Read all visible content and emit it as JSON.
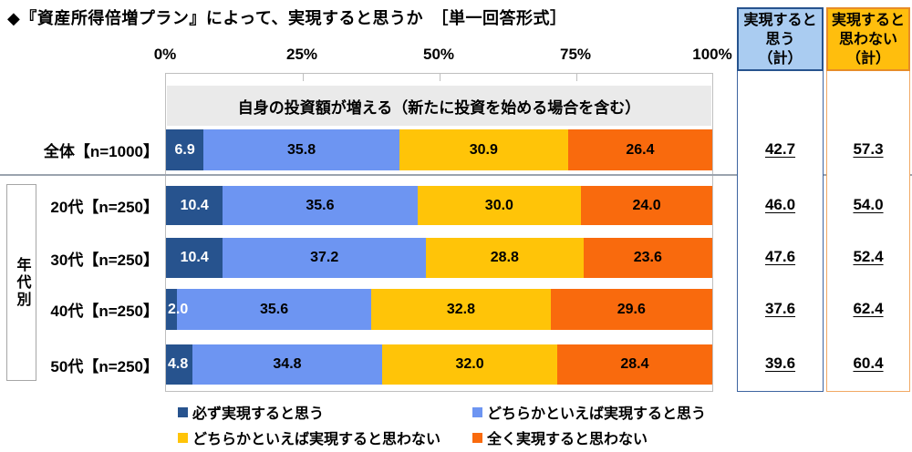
{
  "title": "◆『資産所得倍増プラン』によって、実現すると思うか　［単一回答形式］",
  "statement": "自身の投資額が増える（新たに投資を始める場合を含む）",
  "group_label": "年代別",
  "totals_columns": {
    "agree_header": "実現すると\n思う\n（計）",
    "disagree_header": "実現すると\n思わない\n（計）"
  },
  "colors": {
    "strong_agree": "#27538E",
    "agree": "#6D95F2",
    "disagree": "#FFC408",
    "strong_disagree": "#F96A0D",
    "agree_header_fill": "#AACCF1",
    "agree_header_border": "#27538E",
    "disagree_header_fill": "#FFBE0D",
    "disagree_header_border": "#E78C28",
    "plot_border": "#BFBFBF",
    "statement_band": "#EAEAEA",
    "separator_line": "#9BA3AE"
  },
  "chart_data": {
    "type": "bar",
    "stacked": true,
    "orientation": "horizontal",
    "title": "◆『資産所得倍増プラン』によって、実現すると思うか　［単一回答形式］",
    "statement": "自身の投資額が増える（新たに投資を始める場合を含む）",
    "xlim": [
      0,
      100
    ],
    "x_ticks": [
      "0%",
      "25%",
      "50%",
      "75%",
      "100%"
    ],
    "grid": false,
    "legend_position": "bottom",
    "categories": [
      "全体【n=1000】",
      "20代【n=250】",
      "30代【n=250】",
      "40代【n=250】",
      "50代【n=250】"
    ],
    "series": [
      {
        "name": "必ず実現すると思う",
        "color": "#27538E",
        "label_color": "#FFFFFF",
        "values": [
          6.9,
          10.4,
          10.4,
          2.0,
          4.8
        ]
      },
      {
        "name": "どちらかといえば実現すると思う",
        "color": "#6D95F2",
        "label_color": "#000000",
        "values": [
          35.8,
          35.6,
          37.2,
          35.6,
          34.8
        ]
      },
      {
        "name": "どちらかといえば実現すると思わない",
        "color": "#FFC408",
        "label_color": "#000000",
        "values": [
          30.9,
          30.0,
          28.8,
          32.8,
          32.0
        ]
      },
      {
        "name": "全く実現すると思わない",
        "color": "#F96A0D",
        "label_color": "#000000",
        "values": [
          26.4,
          24.0,
          23.6,
          29.6,
          28.4
        ]
      }
    ],
    "totals": {
      "agree_header": "実現すると思う（計）",
      "disagree_header": "実現すると思わない（計）",
      "agree": [
        42.7,
        46.0,
        47.6,
        37.6,
        39.6
      ],
      "disagree": [
        57.3,
        54.0,
        52.4,
        62.4,
        60.4
      ]
    }
  }
}
